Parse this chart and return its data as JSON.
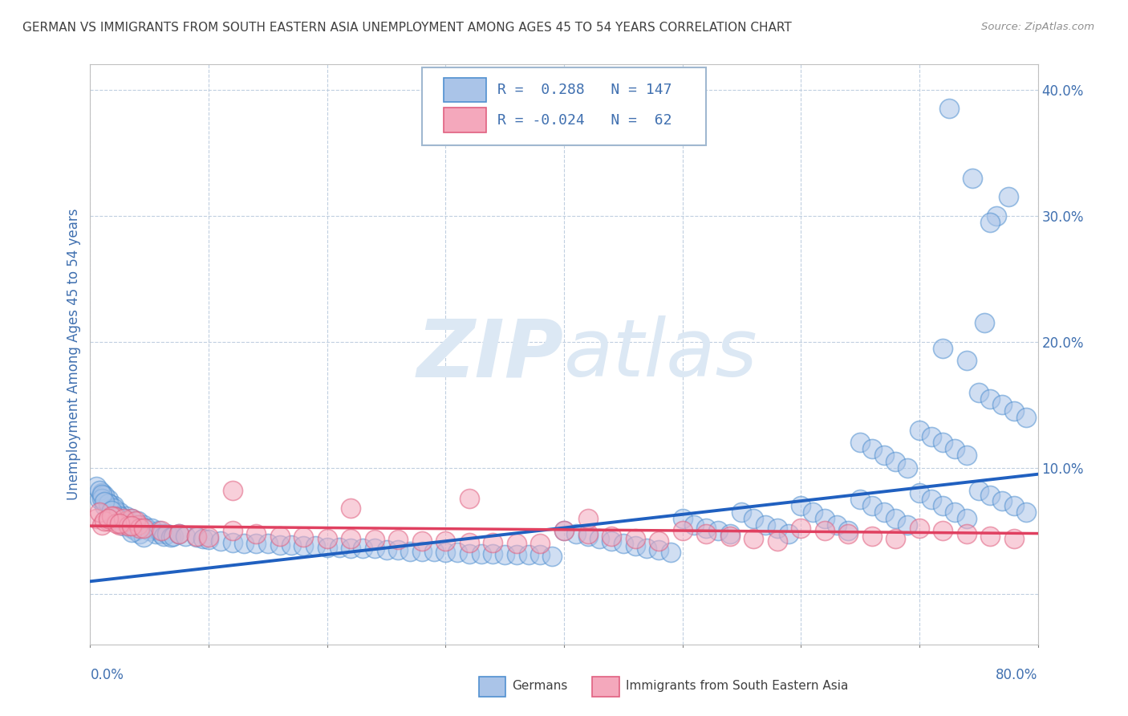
{
  "title": "GERMAN VS IMMIGRANTS FROM SOUTH EASTERN ASIA UNEMPLOYMENT AMONG AGES 45 TO 54 YEARS CORRELATION CHART",
  "source": "Source: ZipAtlas.com",
  "ylabel": "Unemployment Among Ages 45 to 54 years",
  "legend_label_blue": "Germans",
  "legend_label_pink": "Immigrants from South Eastern Asia",
  "R_blue": 0.288,
  "N_blue": 147,
  "R_pink": -0.024,
  "N_pink": 62,
  "blue_face_color": "#aac4e8",
  "blue_edge_color": "#5090d0",
  "pink_face_color": "#f4a8bc",
  "pink_edge_color": "#e06080",
  "blue_line_color": "#2060c0",
  "pink_line_color": "#e04060",
  "bg_color": "#ffffff",
  "grid_color": "#c0cfe0",
  "title_color": "#404040",
  "axis_label_color": "#4070b0",
  "tick_label_color": "#4070b0",
  "source_color": "#909090",
  "watermark_color": "#dce8f4",
  "xlim": [
    0.0,
    0.8
  ],
  "ylim": [
    -0.04,
    0.42
  ],
  "yticks": [
    0.0,
    0.1,
    0.2,
    0.3,
    0.4
  ],
  "blue_trend_start": 0.01,
  "blue_trend_end": 0.095,
  "pink_trend_start": 0.054,
  "pink_trend_end": 0.048,
  "blue_x": [
    0.005,
    0.008,
    0.01,
    0.012,
    0.015,
    0.018,
    0.02,
    0.022,
    0.025,
    0.028,
    0.03,
    0.032,
    0.035,
    0.038,
    0.04,
    0.042,
    0.045,
    0.048,
    0.05,
    0.052,
    0.055,
    0.058,
    0.06,
    0.062,
    0.065,
    0.068,
    0.07,
    0.012,
    0.015,
    0.018,
    0.022,
    0.025,
    0.028,
    0.032,
    0.035,
    0.038,
    0.042,
    0.045,
    0.008,
    0.01,
    0.015,
    0.02,
    0.025,
    0.03,
    0.01,
    0.012,
    0.018,
    0.022,
    0.028,
    0.035,
    0.075,
    0.08,
    0.09,
    0.095,
    0.1,
    0.11,
    0.12,
    0.13,
    0.14,
    0.15,
    0.16,
    0.17,
    0.18,
    0.19,
    0.2,
    0.21,
    0.22,
    0.23,
    0.24,
    0.25,
    0.26,
    0.27,
    0.28,
    0.29,
    0.3,
    0.31,
    0.32,
    0.33,
    0.34,
    0.35,
    0.36,
    0.37,
    0.38,
    0.39,
    0.4,
    0.41,
    0.42,
    0.43,
    0.44,
    0.45,
    0.46,
    0.47,
    0.48,
    0.49,
    0.5,
    0.51,
    0.52,
    0.53,
    0.54,
    0.55,
    0.56,
    0.57,
    0.58,
    0.59,
    0.6,
    0.61,
    0.62,
    0.63,
    0.64,
    0.65,
    0.66,
    0.67,
    0.68,
    0.69,
    0.7,
    0.71,
    0.72,
    0.73,
    0.74,
    0.75,
    0.76,
    0.77,
    0.78,
    0.79,
    0.65,
    0.66,
    0.67,
    0.68,
    0.69,
    0.7,
    0.71,
    0.72,
    0.73,
    0.74,
    0.75,
    0.76,
    0.77,
    0.78,
    0.79,
    0.72,
    0.74,
    0.755,
    0.765,
    0.775,
    0.725,
    0.745,
    0.76
  ],
  "blue_y": [
    0.085,
    0.075,
    0.08,
    0.07,
    0.075,
    0.065,
    0.07,
    0.06,
    0.065,
    0.06,
    0.062,
    0.058,
    0.06,
    0.055,
    0.058,
    0.055,
    0.055,
    0.052,
    0.05,
    0.052,
    0.048,
    0.05,
    0.048,
    0.046,
    0.048,
    0.045,
    0.046,
    0.078,
    0.072,
    0.068,
    0.065,
    0.062,
    0.058,
    0.055,
    0.052,
    0.05,
    0.048,
    0.045,
    0.082,
    0.076,
    0.072,
    0.068,
    0.062,
    0.056,
    0.079,
    0.073,
    0.066,
    0.061,
    0.054,
    0.049,
    0.048,
    0.046,
    0.045,
    0.044,
    0.043,
    0.042,
    0.041,
    0.04,
    0.04,
    0.04,
    0.039,
    0.039,
    0.038,
    0.038,
    0.037,
    0.037,
    0.036,
    0.036,
    0.036,
    0.035,
    0.035,
    0.034,
    0.034,
    0.034,
    0.033,
    0.033,
    0.032,
    0.032,
    0.032,
    0.031,
    0.031,
    0.031,
    0.031,
    0.03,
    0.05,
    0.048,
    0.046,
    0.044,
    0.042,
    0.04,
    0.038,
    0.036,
    0.035,
    0.033,
    0.06,
    0.055,
    0.052,
    0.05,
    0.048,
    0.065,
    0.06,
    0.055,
    0.052,
    0.048,
    0.07,
    0.065,
    0.06,
    0.055,
    0.05,
    0.075,
    0.07,
    0.065,
    0.06,
    0.055,
    0.08,
    0.075,
    0.07,
    0.065,
    0.06,
    0.082,
    0.078,
    0.074,
    0.07,
    0.065,
    0.12,
    0.115,
    0.11,
    0.105,
    0.1,
    0.13,
    0.125,
    0.12,
    0.115,
    0.11,
    0.16,
    0.155,
    0.15,
    0.145,
    0.14,
    0.195,
    0.185,
    0.215,
    0.3,
    0.315,
    0.385,
    0.33,
    0.295
  ],
  "pink_x": [
    0.005,
    0.01,
    0.015,
    0.02,
    0.025,
    0.03,
    0.035,
    0.04,
    0.008,
    0.012,
    0.018,
    0.022,
    0.028,
    0.032,
    0.038,
    0.042,
    0.015,
    0.025,
    0.035,
    0.045,
    0.06,
    0.075,
    0.09,
    0.1,
    0.12,
    0.14,
    0.16,
    0.18,
    0.2,
    0.22,
    0.24,
    0.26,
    0.28,
    0.3,
    0.32,
    0.34,
    0.36,
    0.38,
    0.4,
    0.42,
    0.44,
    0.46,
    0.48,
    0.5,
    0.52,
    0.54,
    0.56,
    0.58,
    0.6,
    0.62,
    0.64,
    0.66,
    0.68,
    0.7,
    0.72,
    0.74,
    0.76,
    0.78,
    0.12,
    0.22,
    0.32,
    0.42
  ],
  "pink_y": [
    0.06,
    0.055,
    0.058,
    0.062,
    0.055,
    0.058,
    0.06,
    0.055,
    0.065,
    0.058,
    0.062,
    0.056,
    0.06,
    0.054,
    0.058,
    0.052,
    0.06,
    0.056,
    0.054,
    0.052,
    0.05,
    0.048,
    0.046,
    0.045,
    0.05,
    0.048,
    0.046,
    0.045,
    0.044,
    0.044,
    0.043,
    0.043,
    0.042,
    0.042,
    0.041,
    0.041,
    0.04,
    0.04,
    0.05,
    0.048,
    0.046,
    0.044,
    0.042,
    0.05,
    0.048,
    0.046,
    0.044,
    0.042,
    0.052,
    0.05,
    0.048,
    0.046,
    0.044,
    0.052,
    0.05,
    0.048,
    0.046,
    0.044,
    0.082,
    0.068,
    0.076,
    0.06
  ]
}
